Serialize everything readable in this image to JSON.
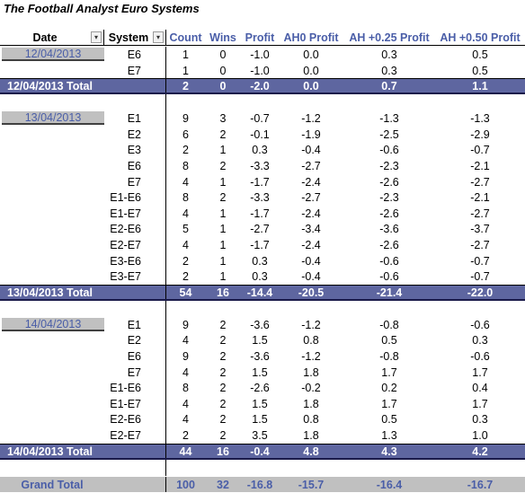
{
  "title": "The Football Analyst Euro Systems",
  "headers": {
    "date": "Date",
    "system": "System",
    "count": "Count",
    "wins": "Wins",
    "profit": "Profit",
    "ah0": "AH0 Profit",
    "ah25": "AH +0.25 Profit",
    "ah50": "AH +0.50 Profit"
  },
  "icons": {
    "date_filter": "filter-dropdown-icon",
    "system_filter": "dropdown-icon"
  },
  "colors": {
    "total_band": "#5e66a0",
    "grand_band": "#c0c0c0",
    "header_text": "#4a5ea8"
  },
  "groups": [
    {
      "date": "12/04/2013",
      "rows": [
        [
          "E6",
          "1",
          "0",
          "-1.0",
          "0.0",
          "0.3",
          "0.5"
        ],
        [
          "E7",
          "1",
          "0",
          "-1.0",
          "0.0",
          "0.3",
          "0.5"
        ]
      ],
      "total": [
        "12/04/2013 Total",
        "2",
        "0",
        "-2.0",
        "0.0",
        "0.7",
        "1.1"
      ]
    },
    {
      "date": "13/04/2013",
      "rows": [
        [
          "E1",
          "9",
          "3",
          "-0.7",
          "-1.2",
          "-1.3",
          "-1.3"
        ],
        [
          "E2",
          "6",
          "2",
          "-0.1",
          "-1.9",
          "-2.5",
          "-2.9"
        ],
        [
          "E3",
          "2",
          "1",
          "0.3",
          "-0.4",
          "-0.6",
          "-0.7"
        ],
        [
          "E6",
          "8",
          "2",
          "-3.3",
          "-2.7",
          "-2.3",
          "-2.1"
        ],
        [
          "E7",
          "4",
          "1",
          "-1.7",
          "-2.4",
          "-2.6",
          "-2.7"
        ],
        [
          "E1-E6",
          "8",
          "2",
          "-3.3",
          "-2.7",
          "-2.3",
          "-2.1"
        ],
        [
          "E1-E7",
          "4",
          "1",
          "-1.7",
          "-2.4",
          "-2.6",
          "-2.7"
        ],
        [
          "E2-E6",
          "5",
          "1",
          "-2.7",
          "-3.4",
          "-3.6",
          "-3.7"
        ],
        [
          "E2-E7",
          "4",
          "1",
          "-1.7",
          "-2.4",
          "-2.6",
          "-2.7"
        ],
        [
          "E3-E6",
          "2",
          "1",
          "0.3",
          "-0.4",
          "-0.6",
          "-0.7"
        ],
        [
          "E3-E7",
          "2",
          "1",
          "0.3",
          "-0.4",
          "-0.6",
          "-0.7"
        ]
      ],
      "total": [
        "13/04/2013 Total",
        "54",
        "16",
        "-14.4",
        "-20.5",
        "-21.4",
        "-22.0"
      ]
    },
    {
      "date": "14/04/2013",
      "rows": [
        [
          "E1",
          "9",
          "2",
          "-3.6",
          "-1.2",
          "-0.8",
          "-0.6"
        ],
        [
          "E2",
          "4",
          "2",
          "1.5",
          "0.8",
          "0.5",
          "0.3"
        ],
        [
          "E6",
          "9",
          "2",
          "-3.6",
          "-1.2",
          "-0.8",
          "-0.6"
        ],
        [
          "E7",
          "4",
          "2",
          "1.5",
          "1.8",
          "1.7",
          "1.7"
        ],
        [
          "E1-E6",
          "8",
          "2",
          "-2.6",
          "-0.2",
          "0.2",
          "0.4"
        ],
        [
          "E1-E7",
          "4",
          "2",
          "1.5",
          "1.8",
          "1.7",
          "1.7"
        ],
        [
          "E2-E6",
          "4",
          "2",
          "1.5",
          "0.8",
          "0.5",
          "0.3"
        ],
        [
          "E2-E7",
          "2",
          "2",
          "3.5",
          "1.8",
          "1.3",
          "1.0"
        ]
      ],
      "total": [
        "14/04/2013 Total",
        "44",
        "16",
        "-0.4",
        "4.8",
        "4.3",
        "4.2"
      ]
    }
  ],
  "grand_total": [
    "Grand Total",
    "100",
    "32",
    "-16.8",
    "-15.7",
    "-16.4",
    "-16.7"
  ]
}
